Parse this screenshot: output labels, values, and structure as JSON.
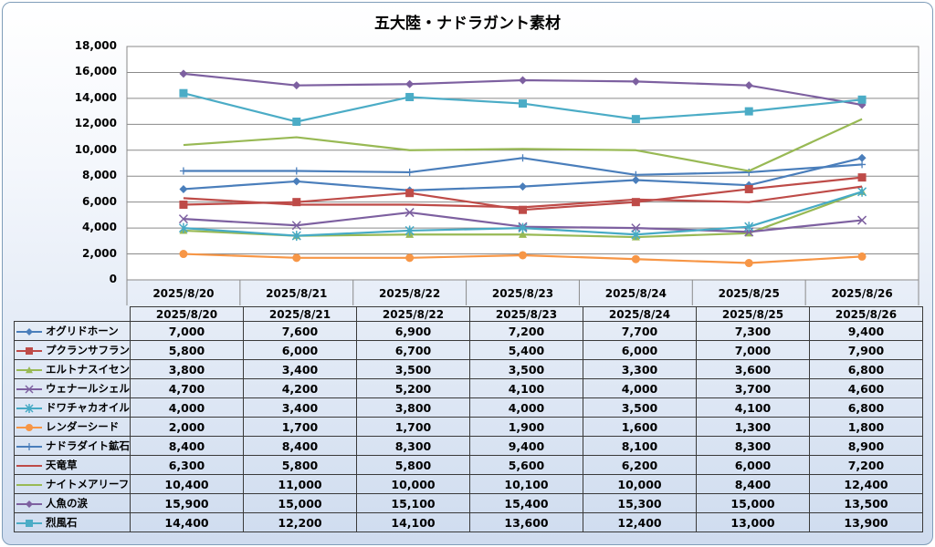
{
  "chart_data": {
    "type": "line",
    "title": "五大陸・ナドラガント素材",
    "categories": [
      "2025/8/20",
      "2025/8/21",
      "2025/8/22",
      "2025/8/23",
      "2025/8/24",
      "2025/8/25",
      "2025/8/26"
    ],
    "ylim": [
      0,
      18000
    ],
    "yticks": [
      "0",
      "2,000",
      "4,000",
      "6,000",
      "8,000",
      "10,000",
      "12,000",
      "14,000",
      "16,000",
      "18,000"
    ],
    "grid": true,
    "legend": "data-table",
    "series": [
      {
        "name": "オグリドホーン",
        "color": "#4a7ebb",
        "marker": "diamond",
        "values": [
          7000,
          7600,
          6900,
          7200,
          7700,
          7300,
          9400
        ],
        "labels": [
          "7,000",
          "7,600",
          "6,900",
          "7,200",
          "7,700",
          "7,300",
          "9,400"
        ]
      },
      {
        "name": "プクランサフラン",
        "color": "#be4b48",
        "marker": "square",
        "values": [
          5800,
          6000,
          6700,
          5400,
          6000,
          7000,
          7900
        ],
        "labels": [
          "5,800",
          "6,000",
          "6,700",
          "5,400",
          "6,000",
          "7,000",
          "7,900"
        ]
      },
      {
        "name": "エルトナスイセン",
        "color": "#98b954",
        "marker": "triangle",
        "values": [
          3800,
          3400,
          3500,
          3500,
          3300,
          3600,
          6800
        ],
        "labels": [
          "3,800",
          "3,400",
          "3,500",
          "3,500",
          "3,300",
          "3,600",
          "6,800"
        ]
      },
      {
        "name": "ウェナールシェル",
        "color": "#7d60a0",
        "marker": "x",
        "values": [
          4700,
          4200,
          5200,
          4100,
          4000,
          3700,
          4600
        ],
        "labels": [
          "4,700",
          "4,200",
          "5,200",
          "4,100",
          "4,000",
          "3,700",
          "4,600"
        ]
      },
      {
        "name": "ドワチャカオイル",
        "color": "#46aac5",
        "marker": "star",
        "values": [
          4000,
          3400,
          3800,
          4000,
          3500,
          4100,
          6800
        ],
        "labels": [
          "4,000",
          "3,400",
          "3,800",
          "4,000",
          "3,500",
          "4,100",
          "6,800"
        ]
      },
      {
        "name": "レンダーシード",
        "color": "#f79646",
        "marker": "circle",
        "values": [
          2000,
          1700,
          1700,
          1900,
          1600,
          1300,
          1800
        ],
        "labels": [
          "2,000",
          "1,700",
          "1,700",
          "1,900",
          "1,600",
          "1,300",
          "1,800"
        ]
      },
      {
        "name": "ナドラダイト鉱石",
        "color": "#4a7ebb",
        "marker": "plus",
        "values": [
          8400,
          8400,
          8300,
          9400,
          8100,
          8300,
          8900
        ],
        "labels": [
          "8,400",
          "8,400",
          "8,300",
          "9,400",
          "8,100",
          "8,300",
          "8,900"
        ]
      },
      {
        "name": "天竜草",
        "color": "#be4b48",
        "marker": "dash",
        "values": [
          6300,
          5800,
          5800,
          5600,
          6200,
          6000,
          7200
        ],
        "labels": [
          "6,300",
          "5,800",
          "5,800",
          "5,600",
          "6,200",
          "6,000",
          "7,200"
        ]
      },
      {
        "name": "ナイトメアリーフ",
        "color": "#98b954",
        "marker": "dash",
        "values": [
          10400,
          11000,
          10000,
          10100,
          10000,
          8400,
          12400
        ],
        "labels": [
          "10,400",
          "11,000",
          "10,000",
          "10,100",
          "10,000",
          "8,400",
          "12,400"
        ]
      },
      {
        "name": "人魚の涙",
        "color": "#7d60a0",
        "marker": "diamond",
        "values": [
          15900,
          15000,
          15100,
          15400,
          15300,
          15000,
          13500
        ],
        "labels": [
          "15,900",
          "15,000",
          "15,100",
          "15,400",
          "15,300",
          "15,000",
          "13,500"
        ]
      },
      {
        "name": "烈風石",
        "color": "#4bacc6",
        "marker": "square",
        "values": [
          14400,
          12200,
          14100,
          13600,
          12400,
          13000,
          13900
        ],
        "labels": [
          "14,400",
          "12,200",
          "14,100",
          "13,600",
          "12,400",
          "13,000",
          "13,900"
        ]
      }
    ]
  }
}
